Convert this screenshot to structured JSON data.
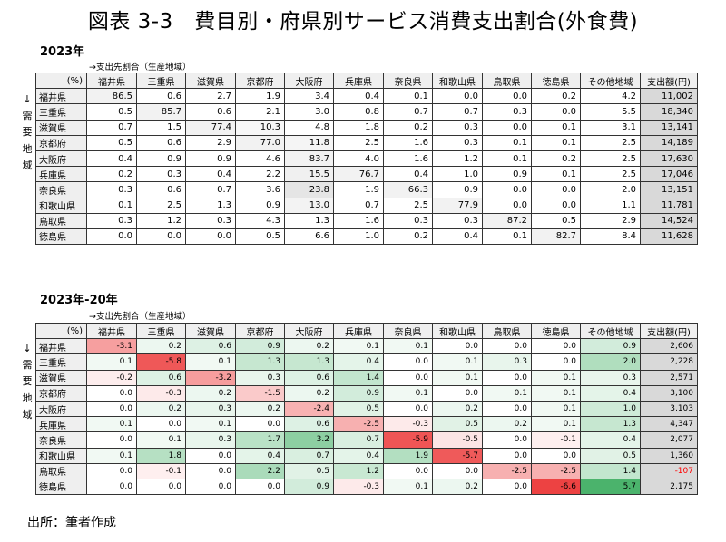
{
  "title": "図表 3-3　費目別・府県別サービス消費支出割合(外食費)",
  "source": "出所：筆者作成",
  "side_label": [
    "↓",
    "需",
    "要",
    "地",
    "域"
  ],
  "colors": {
    "header_bg": "#efefef",
    "amount_bg": "#d9d9d9",
    "negative": "#ff0000",
    "positive": "#00a050"
  },
  "chart_data": [
    {
      "type": "table",
      "title": "2023年",
      "column_axis_label": "→支出先割合（生産地域）",
      "corner_label": "(%)",
      "columns": [
        "福井県",
        "三重県",
        "滋賀県",
        "京都府",
        "大阪府",
        "兵庫県",
        "奈良県",
        "和歌山県",
        "鳥取県",
        "徳島県",
        "その他地域",
        "支出額(円)"
      ],
      "rows": [
        {
          "label": "福井県",
          "values": [
            "86.5",
            "0.6",
            "2.7",
            "1.9",
            "3.4",
            "0.4",
            "0.1",
            "0.0",
            "0.0",
            "0.2",
            "4.2",
            "11,002"
          ]
        },
        {
          "label": "三重県",
          "values": [
            "0.5",
            "85.7",
            "0.6",
            "2.1",
            "3.0",
            "0.8",
            "0.7",
            "0.7",
            "0.3",
            "0.0",
            "5.5",
            "18,340"
          ]
        },
        {
          "label": "滋賀県",
          "values": [
            "0.7",
            "1.5",
            "77.4",
            "10.3",
            "4.8",
            "1.8",
            "0.2",
            "0.3",
            "0.0",
            "0.1",
            "3.1",
            "13,141"
          ]
        },
        {
          "label": "京都府",
          "values": [
            "0.5",
            "0.6",
            "2.9",
            "77.0",
            "11.8",
            "2.5",
            "1.6",
            "0.3",
            "0.1",
            "0.1",
            "2.5",
            "14,189"
          ]
        },
        {
          "label": "大阪府",
          "values": [
            "0.4",
            "0.9",
            "0.9",
            "4.6",
            "83.7",
            "4.0",
            "1.6",
            "1.2",
            "0.1",
            "0.2",
            "2.5",
            "17,630"
          ]
        },
        {
          "label": "兵庫県",
          "values": [
            "0.2",
            "0.3",
            "0.4",
            "2.2",
            "15.5",
            "76.7",
            "0.4",
            "1.0",
            "0.9",
            "0.1",
            "2.5",
            "17,046"
          ]
        },
        {
          "label": "奈良県",
          "values": [
            "0.3",
            "0.6",
            "0.7",
            "3.6",
            "23.8",
            "1.9",
            "66.3",
            "0.9",
            "0.0",
            "0.0",
            "2.0",
            "13,151"
          ]
        },
        {
          "label": "和歌山県",
          "values": [
            "0.1",
            "2.5",
            "1.3",
            "0.9",
            "13.0",
            "0.7",
            "2.5",
            "77.9",
            "0.0",
            "0.0",
            "1.1",
            "11,781"
          ]
        },
        {
          "label": "鳥取県",
          "values": [
            "0.3",
            "1.2",
            "0.3",
            "4.3",
            "1.3",
            "1.6",
            "0.3",
            "0.3",
            "87.2",
            "0.5",
            "2.9",
            "14,524"
          ]
        },
        {
          "label": "徳島県",
          "values": [
            "0.0",
            "0.0",
            "0.0",
            "0.5",
            "6.6",
            "1.0",
            "0.2",
            "0.4",
            "0.1",
            "82.7",
            "8.4",
            "11,628"
          ]
        }
      ]
    },
    {
      "type": "table",
      "title": "2023年-20年",
      "column_axis_label": "→支出先割合（生産地域）",
      "corner_label": "(%)",
      "columns": [
        "福井県",
        "三重県",
        "滋賀県",
        "京都府",
        "大阪府",
        "兵庫県",
        "奈良県",
        "和歌山県",
        "鳥取県",
        "徳島県",
        "その他地域",
        "支出額(円)"
      ],
      "rows": [
        {
          "label": "福井県",
          "values": [
            "-3.1",
            "0.2",
            "0.6",
            "0.9",
            "0.2",
            "0.1",
            "0.1",
            "0.0",
            "0.0",
            "0.0",
            "0.9",
            "2,606"
          ]
        },
        {
          "label": "三重県",
          "values": [
            "0.1",
            "-5.8",
            "0.1",
            "1.3",
            "1.3",
            "0.4",
            "0.0",
            "0.1",
            "0.3",
            "0.0",
            "2.0",
            "2,228"
          ]
        },
        {
          "label": "滋賀県",
          "values": [
            "-0.2",
            "0.6",
            "-3.2",
            "0.3",
            "0.6",
            "1.4",
            "0.0",
            "0.1",
            "0.0",
            "0.1",
            "0.3",
            "2,571"
          ]
        },
        {
          "label": "京都府",
          "values": [
            "0.0",
            "-0.3",
            "0.2",
            "-1.5",
            "0.2",
            "0.9",
            "0.1",
            "0.0",
            "0.1",
            "0.1",
            "0.4",
            "3,100"
          ]
        },
        {
          "label": "大阪府",
          "values": [
            "0.0",
            "0.2",
            "0.3",
            "0.2",
            "-2.4",
            "0.5",
            "0.0",
            "0.2",
            "0.0",
            "0.1",
            "1.0",
            "3,103"
          ]
        },
        {
          "label": "兵庫県",
          "values": [
            "0.1",
            "0.0",
            "0.1",
            "0.0",
            "0.6",
            "-2.5",
            "-0.3",
            "0.5",
            "0.2",
            "0.1",
            "1.3",
            "4,347"
          ]
        },
        {
          "label": "奈良県",
          "values": [
            "0.0",
            "0.1",
            "0.3",
            "1.7",
            "3.2",
            "0.7",
            "-5.9",
            "-0.5",
            "0.0",
            "-0.1",
            "0.4",
            "2,077"
          ]
        },
        {
          "label": "和歌山県",
          "values": [
            "0.1",
            "1.8",
            "0.0",
            "0.4",
            "0.7",
            "0.4",
            "1.9",
            "-5.7",
            "0.0",
            "0.0",
            "0.5",
            "1,360"
          ]
        },
        {
          "label": "鳥取県",
          "values": [
            "0.0",
            "-0.1",
            "0.0",
            "2.2",
            "0.5",
            "1.2",
            "0.0",
            "0.0",
            "-2.5",
            "-2.5",
            "1.4",
            "-107"
          ]
        },
        {
          "label": "徳島県",
          "values": [
            "0.0",
            "0.0",
            "0.0",
            "0.0",
            "0.9",
            "-0.3",
            "0.1",
            "0.2",
            "0.0",
            "-6.6",
            "5.7",
            "2,175"
          ]
        }
      ]
    }
  ]
}
